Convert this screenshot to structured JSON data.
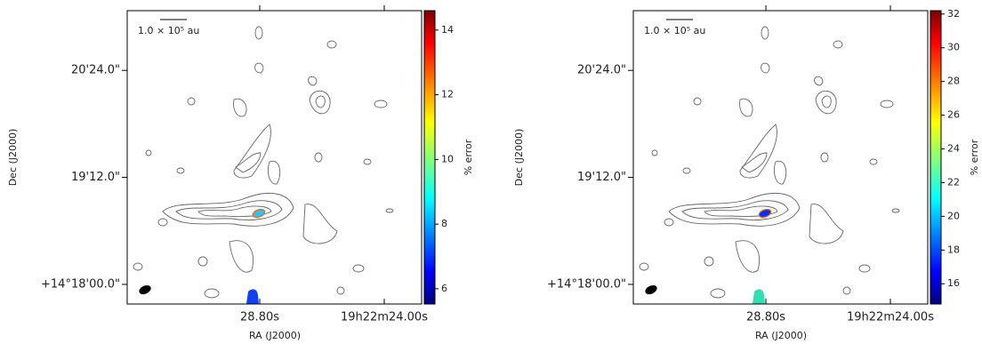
{
  "chart_data": [
    {
      "type": "image",
      "xlabel": "RA (J2000)",
      "ylabel": "Dec (J2000)",
      "scalebar_label": "1.0 × 10⁵ au",
      "colorbar_label": "% error",
      "colormap": "jet",
      "xlim": [
        33.91,
        22.56
      ],
      "xticks": [
        {
          "value": 28.8,
          "label": "28.80s"
        },
        {
          "value": 24.0,
          "label": "19h22m24.00s"
        }
      ],
      "ylim": [
        1066.8,
        1264.2
      ],
      "yticks": [
        {
          "value": 1080,
          "label": "+14°18'00.0\""
        },
        {
          "value": 1152,
          "label": "19'12.0\""
        },
        {
          "value": 1224,
          "label": "20'24.0\""
        }
      ],
      "clim": [
        5.53,
        14.6
      ],
      "cticks": [
        6,
        8,
        10,
        12,
        14
      ]
    },
    {
      "type": "image",
      "xlabel": "RA (J2000)",
      "ylabel": "Dec (J2000)",
      "scalebar_label": "1.0 × 10⁵ au",
      "colorbar_label": "% error",
      "colormap": "jet",
      "xlim": [
        33.91,
        22.56
      ],
      "xticks": [
        {
          "value": 28.8,
          "label": "28.80s"
        },
        {
          "value": 24.0,
          "label": "19h22m24.00s"
        }
      ],
      "ylim": [
        1066.8,
        1264.2
      ],
      "yticks": [
        {
          "value": 1080,
          "label": "+14°18'00.0\""
        },
        {
          "value": 1152,
          "label": "19'12.0\""
        },
        {
          "value": 1224,
          "label": "20'24.0\""
        }
      ],
      "clim": [
        14.8,
        32.2
      ],
      "cticks": [
        16,
        18,
        20,
        22,
        24,
        26,
        28,
        30,
        32
      ]
    }
  ]
}
